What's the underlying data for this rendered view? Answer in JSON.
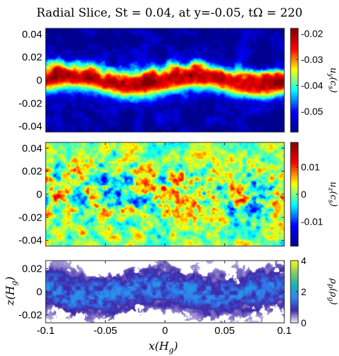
{
  "title": "Radial Slice, St = 0.04, at y=-0.05, tΩ = 220",
  "xlabel": "x(H_g)",
  "ylabel": "z(H_g)",
  "colors": {
    "jet": [
      "#00008f",
      "#0000ff",
      "#00ffff",
      "#ffff00",
      "#ff0000",
      "#800000"
    ],
    "parula": [
      "#f1f0fa",
      "#3e26a8",
      "#2f85f3",
      "#14b2b8",
      "#82cc5e",
      "#f9f821"
    ]
  },
  "chart_data": [
    {
      "type": "heatmap",
      "name": "u_y slice",
      "colorbar_label": "u_y(c_s)",
      "colormap": "jet",
      "xlim": [
        -0.1,
        0.1
      ],
      "ylim": [
        -0.045,
        0.045
      ],
      "clim": [
        -0.058,
        -0.018
      ],
      "yticks": [
        -0.04,
        -0.02,
        0,
        0.02,
        0.04
      ],
      "ytick_labels": [
        "-0.04",
        "-0.02",
        "0",
        "0.02",
        "0.04"
      ],
      "cticks": [
        -0.05,
        -0.04,
        -0.03,
        -0.02
      ],
      "ctick_labels": [
        "-0.05",
        "-0.04",
        "-0.03",
        "-0.02"
      ],
      "profile": {
        "center": -0.021,
        "edge": -0.057,
        "layer_halfwidth": 0.012
      }
    },
    {
      "type": "heatmap",
      "name": "u_z slice",
      "colorbar_label": "u_z(c_s)",
      "colormap": "jet",
      "xlim": [
        -0.1,
        0.1
      ],
      "ylim": [
        -0.045,
        0.045
      ],
      "clim": [
        -0.019,
        0.019
      ],
      "yticks": [
        -0.04,
        -0.02,
        0,
        0.02,
        0.04
      ],
      "ytick_labels": [
        "-0.04",
        "-0.02",
        "0",
        "0.02",
        "0.04"
      ],
      "cticks": [
        -0.01,
        0,
        0.01
      ],
      "ctick_labels": [
        "-0.01",
        "0",
        "0.01"
      ],
      "profile": {
        "center": 0.0,
        "edge": 0.0,
        "layer_halfwidth": 0.02
      }
    },
    {
      "type": "heatmap",
      "name": "rho_p slice",
      "colorbar_label": "ρ_p(ρ_g)",
      "colormap": "parula",
      "xlim": [
        -0.1,
        0.1
      ],
      "ylim": [
        -0.027,
        0.027
      ],
      "clim": [
        0,
        4
      ],
      "yticks": [
        -0.02,
        0,
        0.02
      ],
      "ytick_labels": [
        "-0.02",
        "0",
        "0.02"
      ],
      "xticks": [
        -0.1,
        -0.05,
        0,
        0.05,
        0.1
      ],
      "xtick_labels": [
        "-0.1",
        "-0.05",
        "0",
        "0.05",
        "0.1"
      ],
      "cticks": [
        0,
        2,
        4
      ],
      "ctick_labels": [
        "0",
        "2",
        "4"
      ],
      "profile": {
        "center": 1.0,
        "edge": 0.0,
        "layer_halfwidth": 0.016
      }
    }
  ]
}
